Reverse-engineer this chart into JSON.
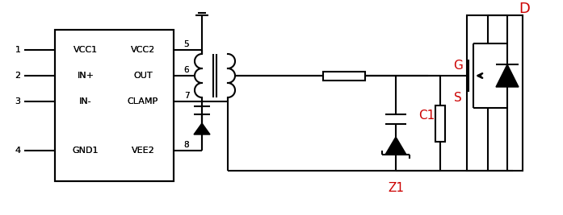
{
  "bg_color": "#ffffff",
  "line_color": "#000000",
  "red_color": "#cc0000",
  "lw": 1.5,
  "fig_w": 6.97,
  "fig_h": 2.67,
  "pin_labels_left": [
    "VCC1",
    "IN+",
    "IN-",
    "GND1"
  ],
  "pin_labels_right": [
    "VCC2",
    "OUT",
    "CLAMP",
    "VEE2"
  ],
  "pin_numbers_left": [
    "1",
    "2",
    "3",
    "4"
  ],
  "pin_numbers_right": [
    "5",
    "6",
    "7",
    "8"
  ]
}
